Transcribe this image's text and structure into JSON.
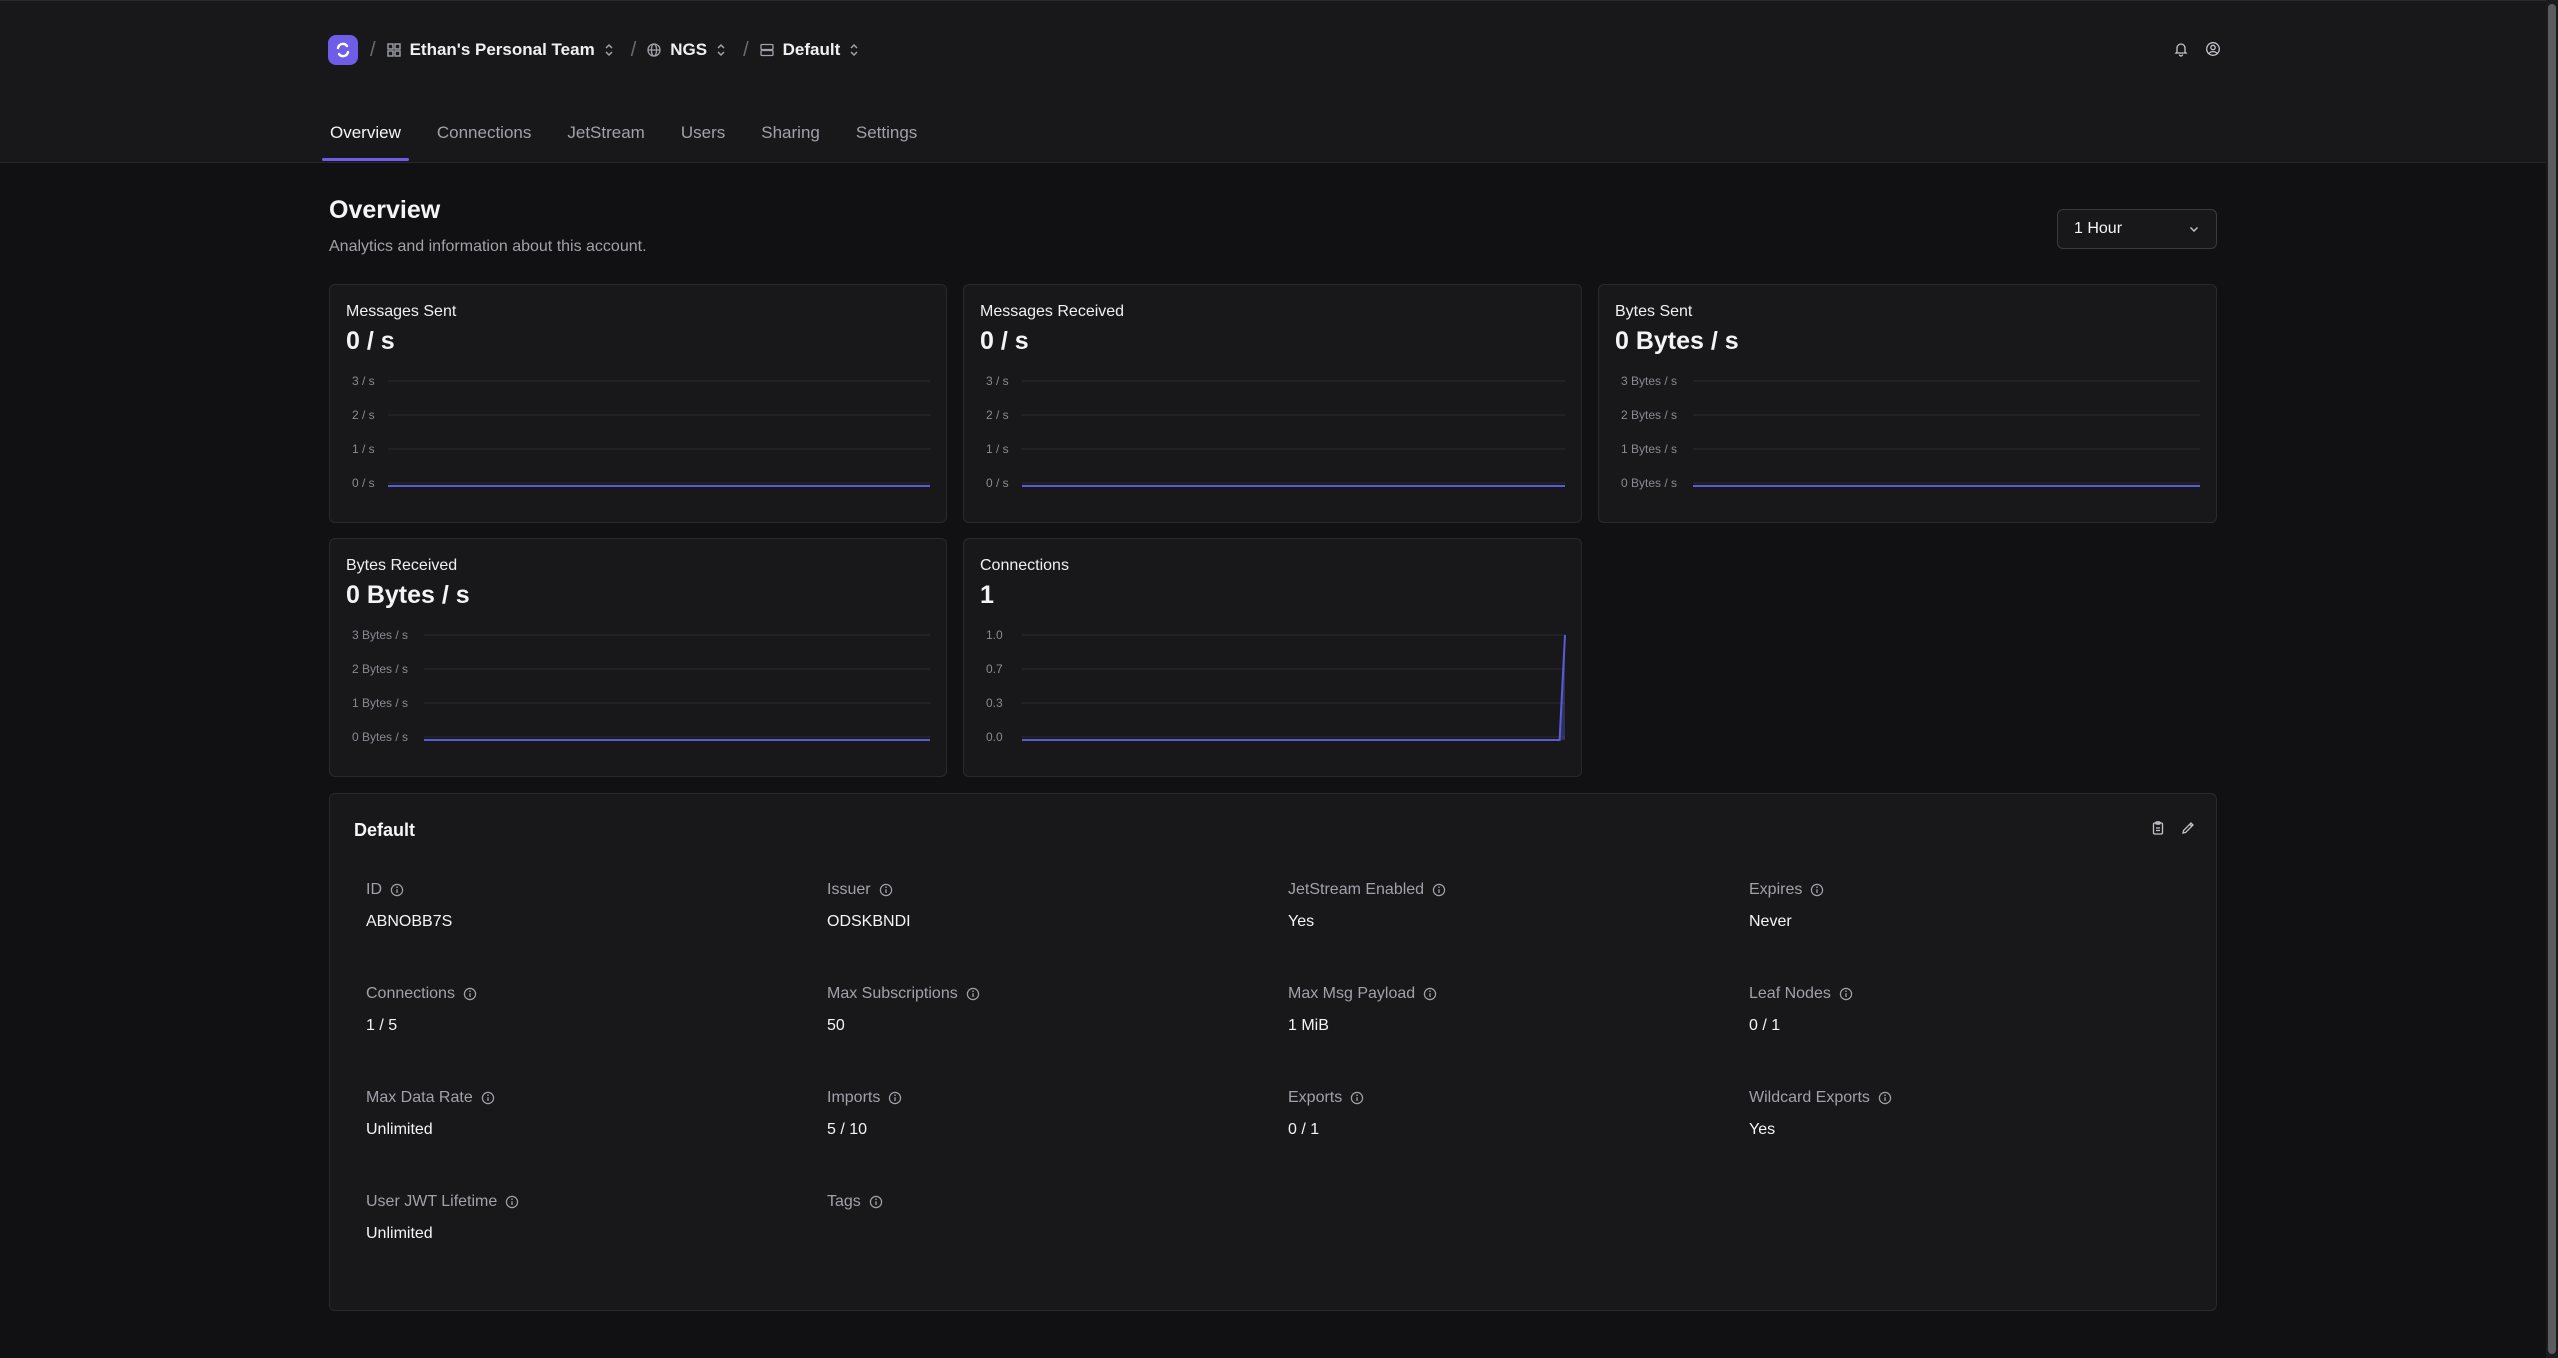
{
  "breadcrumb": {
    "team": "Ethan's Personal Team",
    "system": "NGS",
    "account": "Default"
  },
  "tabs": [
    "Overview",
    "Connections",
    "JetStream",
    "Users",
    "Sharing",
    "Settings"
  ],
  "active_tab": "Overview",
  "page": {
    "title": "Overview",
    "subtitle": "Analytics and information about this account.",
    "time_range": "1 Hour"
  },
  "colors": {
    "accent": "#6d5de8",
    "line": "#5b5bd6"
  },
  "cards": [
    {
      "label": "Messages Sent",
      "value": "0 / s"
    },
    {
      "label": "Messages Received",
      "value": "0 / s"
    },
    {
      "label": "Bytes Sent",
      "value": "0 Bytes / s"
    },
    {
      "label": "Bytes Received",
      "value": "0 Bytes / s"
    },
    {
      "label": "Connections",
      "value": "1"
    }
  ],
  "chart_data": [
    {
      "type": "line",
      "title": "Messages Sent",
      "yticks": [
        "3 / s",
        "2 / s",
        "1 / s",
        "0 / s"
      ],
      "ylim": [
        0,
        3
      ],
      "x": [
        0,
        1
      ],
      "values": [
        0,
        0
      ]
    },
    {
      "type": "line",
      "title": "Messages Received",
      "yticks": [
        "3 / s",
        "2 / s",
        "1 / s",
        "0 / s"
      ],
      "ylim": [
        0,
        3
      ],
      "x": [
        0,
        1
      ],
      "values": [
        0,
        0
      ]
    },
    {
      "type": "line",
      "title": "Bytes Sent",
      "yticks": [
        "3 Bytes / s",
        "2 Bytes / s",
        "1 Bytes / s",
        "0 Bytes / s"
      ],
      "ylim": [
        0,
        3
      ],
      "x": [
        0,
        1
      ],
      "values": [
        0,
        0
      ]
    },
    {
      "type": "line",
      "title": "Bytes Received",
      "yticks": [
        "3 Bytes / s",
        "2 Bytes / s",
        "1 Bytes / s",
        "0 Bytes / s"
      ],
      "ylim": [
        0,
        3
      ],
      "x": [
        0,
        1
      ],
      "values": [
        0,
        0
      ]
    },
    {
      "type": "area",
      "title": "Connections",
      "yticks": [
        "1.0",
        "0.7",
        "0.3",
        "0.0"
      ],
      "ylim": [
        0,
        1
      ],
      "x": [
        0,
        0.99,
        1
      ],
      "values": [
        0,
        0,
        1
      ]
    }
  ],
  "details": {
    "title": "Default",
    "fields": [
      {
        "label": "ID",
        "value": "ABNOBB7S"
      },
      {
        "label": "Issuer",
        "value": "ODSKBNDI"
      },
      {
        "label": "JetStream Enabled",
        "value": "Yes"
      },
      {
        "label": "Expires",
        "value": "Never"
      },
      {
        "label": "Connections",
        "value": "1 / 5"
      },
      {
        "label": "Max Subscriptions",
        "value": "50"
      },
      {
        "label": "Max Msg Payload",
        "value": "1 MiB"
      },
      {
        "label": "Leaf Nodes",
        "value": "0 / 1"
      },
      {
        "label": "Max Data Rate",
        "value": "Unlimited"
      },
      {
        "label": "Imports",
        "value": "5 / 10"
      },
      {
        "label": "Exports",
        "value": "0 / 1"
      },
      {
        "label": "Wildcard Exports",
        "value": "Yes"
      },
      {
        "label": "User JWT Lifetime",
        "value": "Unlimited"
      },
      {
        "label": "Tags",
        "value": ""
      }
    ]
  }
}
